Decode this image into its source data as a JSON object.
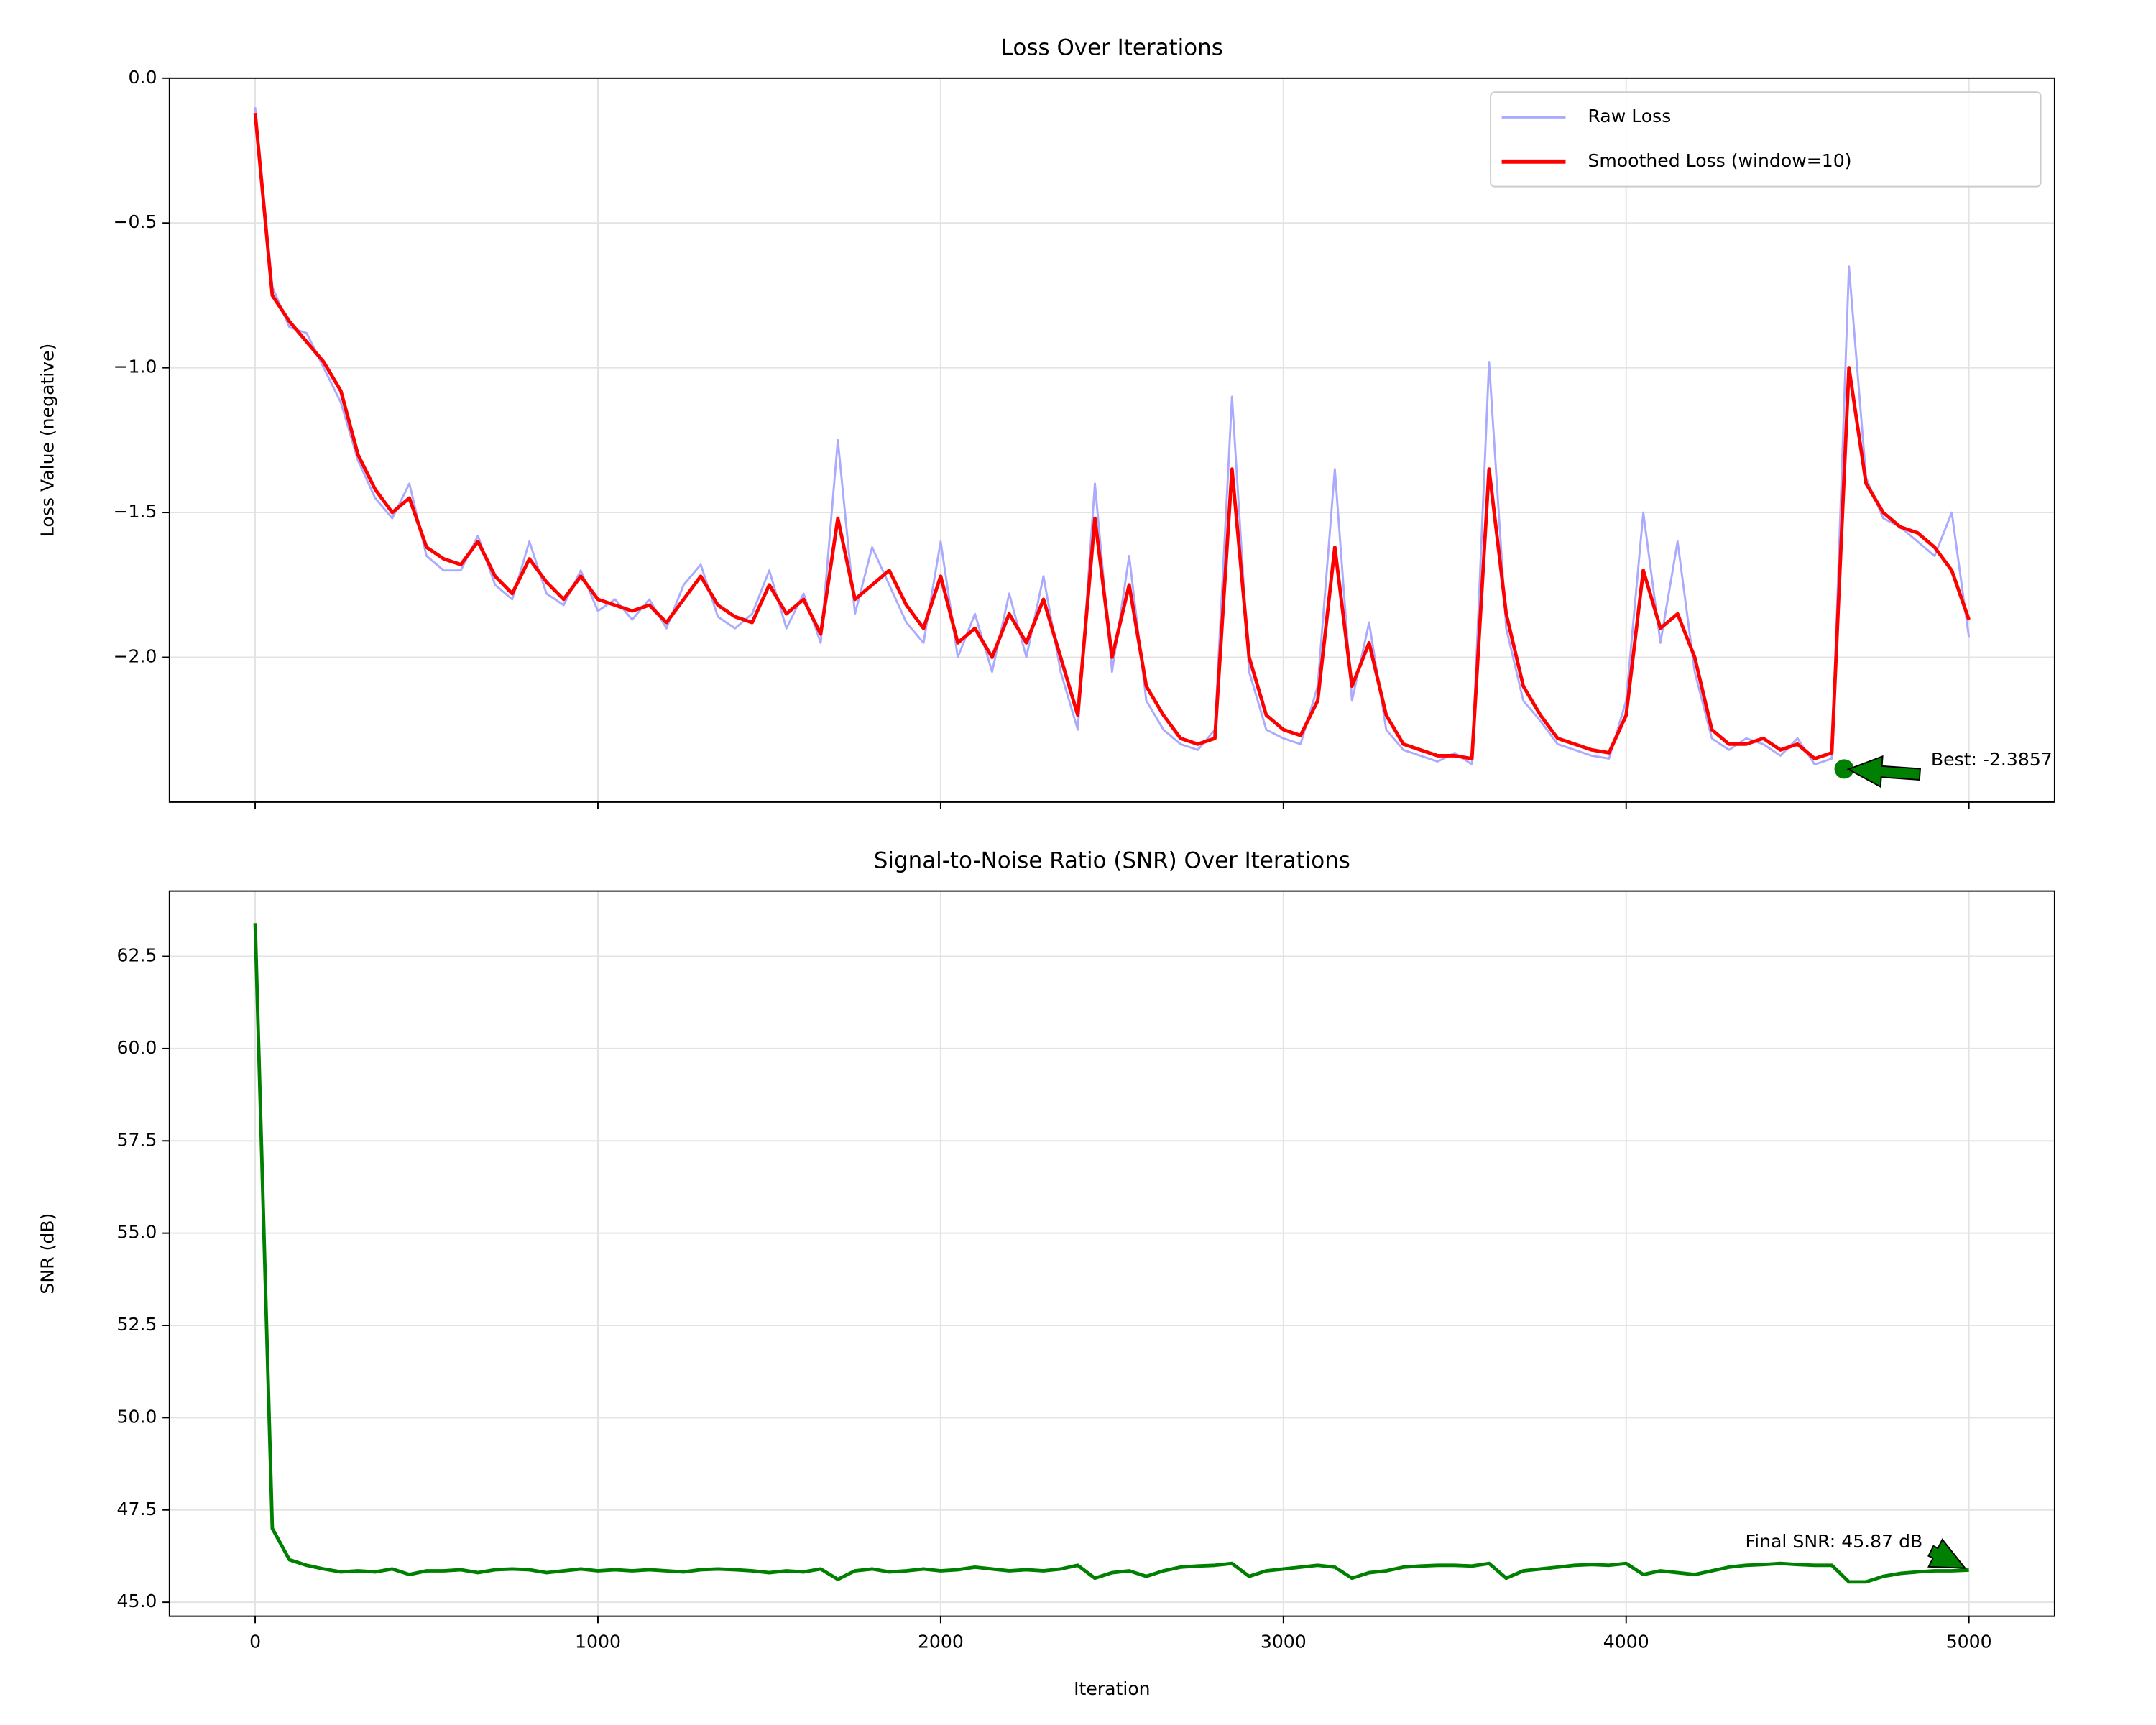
{
  "chart_data": [
    {
      "type": "line",
      "title": "Loss Over Iterations",
      "ylabel": "Loss Value (negative)",
      "x": [
        0,
        50,
        100,
        150,
        200,
        250,
        300,
        350,
        400,
        450,
        500,
        550,
        600,
        650,
        700,
        750,
        800,
        850,
        900,
        950,
        1000,
        1050,
        1100,
        1150,
        1200,
        1250,
        1300,
        1350,
        1400,
        1450,
        1500,
        1550,
        1600,
        1650,
        1700,
        1750,
        1800,
        1850,
        1900,
        1950,
        2000,
        2050,
        2100,
        2150,
        2200,
        2250,
        2300,
        2350,
        2400,
        2450,
        2500,
        2550,
        2600,
        2650,
        2700,
        2750,
        2800,
        2850,
        2900,
        2950,
        3000,
        3050,
        3100,
        3150,
        3200,
        3250,
        3300,
        3350,
        3400,
        3450,
        3500,
        3550,
        3600,
        3650,
        3700,
        3750,
        3800,
        3850,
        3900,
        3950,
        4000,
        4050,
        4100,
        4150,
        4200,
        4250,
        4300,
        4350,
        4400,
        4450,
        4500,
        4550,
        4600,
        4650,
        4700,
        4750,
        4800,
        4850,
        4900,
        4950,
        5000
      ],
      "series": [
        {
          "name": "Raw Loss",
          "color": "#aaaaff",
          "values": [
            -0.1,
            -0.72,
            -0.86,
            -0.88,
            -1.0,
            -1.12,
            -1.32,
            -1.45,
            -1.52,
            -1.4,
            -1.65,
            -1.7,
            -1.7,
            -1.58,
            -1.75,
            -1.8,
            -1.6,
            -1.78,
            -1.82,
            -1.7,
            -1.84,
            -1.8,
            -1.87,
            -1.8,
            -1.9,
            -1.75,
            -1.68,
            -1.86,
            -1.9,
            -1.85,
            -1.7,
            -1.9,
            -1.78,
            -1.95,
            -1.25,
            -1.85,
            -1.62,
            -1.75,
            -1.88,
            -1.95,
            -1.6,
            -2.0,
            -1.85,
            -2.05,
            -1.78,
            -2.0,
            -1.72,
            -2.05,
            -2.25,
            -1.4,
            -2.05,
            -1.65,
            -2.15,
            -2.25,
            -2.3,
            -2.32,
            -2.25,
            -1.1,
            -2.05,
            -2.25,
            -2.28,
            -2.3,
            -2.1,
            -1.35,
            -2.15,
            -1.88,
            -2.25,
            -2.32,
            -2.34,
            -2.36,
            -2.33,
            -2.37,
            -0.98,
            -1.9,
            -2.15,
            -2.22,
            -2.3,
            -2.32,
            -2.34,
            -2.35,
            -2.15,
            -1.5,
            -1.95,
            -1.6,
            -2.05,
            -2.28,
            -2.32,
            -2.28,
            -2.3,
            -2.34,
            -2.28,
            -2.37,
            -2.35,
            -0.65,
            -1.38,
            -1.52,
            -1.55,
            -1.6,
            -1.65,
            -1.5,
            -1.93
          ]
        },
        {
          "name": "Smoothed Loss (window=10)",
          "color": "#ff0000",
          "values": [
            -0.12,
            -0.75,
            -0.84,
            -0.91,
            -0.98,
            -1.08,
            -1.3,
            -1.42,
            -1.5,
            -1.45,
            -1.62,
            -1.66,
            -1.68,
            -1.6,
            -1.72,
            -1.78,
            -1.66,
            -1.74,
            -1.8,
            -1.72,
            -1.8,
            -1.82,
            -1.84,
            -1.82,
            -1.88,
            -1.8,
            -1.72,
            -1.82,
            -1.86,
            -1.88,
            -1.75,
            -1.85,
            -1.8,
            -1.92,
            -1.52,
            -1.8,
            -1.75,
            -1.7,
            -1.82,
            -1.9,
            -1.72,
            -1.95,
            -1.9,
            -2.0,
            -1.85,
            -1.95,
            -1.8,
            -2.0,
            -2.2,
            -1.52,
            -2.0,
            -1.75,
            -2.1,
            -2.2,
            -2.28,
            -2.3,
            -2.28,
            -1.35,
            -2.0,
            -2.2,
            -2.25,
            -2.27,
            -2.15,
            -1.62,
            -2.1,
            -1.95,
            -2.2,
            -2.3,
            -2.32,
            -2.34,
            -2.34,
            -2.35,
            -1.35,
            -1.85,
            -2.1,
            -2.2,
            -2.28,
            -2.3,
            -2.32,
            -2.33,
            -2.2,
            -1.7,
            -1.9,
            -1.85,
            -2.0,
            -2.25,
            -2.3,
            -2.3,
            -2.28,
            -2.32,
            -2.3,
            -2.35,
            -2.33,
            -1.0,
            -1.4,
            -1.5,
            -1.55,
            -1.57,
            -1.62,
            -1.7,
            -1.87
          ]
        }
      ],
      "xlim": [
        -250,
        5250
      ],
      "xticks": [
        0,
        1000,
        2000,
        3000,
        4000,
        5000
      ],
      "ylim": [
        -2.5,
        0
      ],
      "yticks": [
        {
          "value": 0,
          "label": "0.0"
        },
        {
          "value": -0.5,
          "label": "−0.5"
        },
        {
          "value": -1,
          "label": "−1.0"
        },
        {
          "value": -1.5,
          "label": "−1.5"
        },
        {
          "value": -2,
          "label": "−2.0"
        }
      ],
      "grid": true,
      "legend": "upper right",
      "annotations": [
        {
          "text": "Best: -2.3857",
          "x": 4636,
          "y": -2.3857,
          "color": "#008000"
        }
      ]
    },
    {
      "type": "line",
      "title": "Signal-to-Noise Ratio (SNR) Over Iterations",
      "ylabel": "SNR (dB)",
      "xlabel": "Iteration",
      "x": [
        0,
        50,
        100,
        150,
        200,
        250,
        300,
        350,
        400,
        450,
        500,
        550,
        600,
        650,
        700,
        750,
        800,
        850,
        900,
        950,
        1000,
        1050,
        1100,
        1150,
        1200,
        1250,
        1300,
        1350,
        1400,
        1450,
        1500,
        1550,
        1600,
        1650,
        1700,
        1750,
        1800,
        1850,
        1900,
        1950,
        2000,
        2050,
        2100,
        2150,
        2200,
        2250,
        2300,
        2350,
        2400,
        2450,
        2500,
        2550,
        2600,
        2650,
        2700,
        2750,
        2800,
        2850,
        2900,
        2950,
        3000,
        3050,
        3100,
        3150,
        3200,
        3250,
        3300,
        3350,
        3400,
        3450,
        3500,
        3550,
        3600,
        3650,
        3700,
        3750,
        3800,
        3850,
        3900,
        3950,
        4000,
        4050,
        4100,
        4150,
        4200,
        4250,
        4300,
        4350,
        4400,
        4450,
        4500,
        4550,
        4600,
        4650,
        4700,
        4750,
        4800,
        4850,
        4900,
        4950,
        5000
      ],
      "series": [
        {
          "name": "SNR",
          "color": "#008000",
          "values": [
            63.4,
            47.0,
            46.15,
            46.0,
            45.9,
            45.82,
            45.85,
            45.82,
            45.9,
            45.75,
            45.85,
            45.85,
            45.88,
            45.8,
            45.88,
            45.9,
            45.88,
            45.8,
            45.85,
            45.9,
            45.85,
            45.88,
            45.85,
            45.88,
            45.85,
            45.82,
            45.88,
            45.9,
            45.88,
            45.85,
            45.8,
            45.85,
            45.82,
            45.9,
            45.62,
            45.85,
            45.9,
            45.82,
            45.85,
            45.9,
            45.85,
            45.88,
            45.95,
            45.9,
            45.85,
            45.88,
            45.85,
            45.9,
            46.0,
            45.65,
            45.8,
            45.85,
            45.7,
            45.85,
            45.95,
            45.98,
            46.0,
            46.05,
            45.7,
            45.85,
            45.9,
            45.95,
            46.0,
            45.95,
            45.65,
            45.8,
            45.85,
            45.95,
            45.98,
            46.0,
            46.0,
            45.98,
            46.05,
            45.65,
            45.85,
            45.9,
            45.95,
            46.0,
            46.02,
            46.0,
            46.05,
            45.75,
            45.85,
            45.8,
            45.75,
            45.85,
            45.95,
            46.0,
            46.02,
            46.05,
            46.02,
            46.0,
            46.0,
            45.55,
            45.55,
            45.7,
            45.78,
            45.82,
            45.85,
            45.85,
            45.87
          ]
        }
      ],
      "xlim": [
        -250,
        5250
      ],
      "xticks": [
        0,
        1000,
        2000,
        3000,
        4000,
        5000
      ],
      "ylim": [
        44.62,
        64.27
      ],
      "yticks": [
        {
          "value": 45,
          "label": "45.0"
        },
        {
          "value": 47.5,
          "label": "47.5"
        },
        {
          "value": 50,
          "label": "50.0"
        },
        {
          "value": 52.5,
          "label": "52.5"
        },
        {
          "value": 55,
          "label": "55.0"
        },
        {
          "value": 57.5,
          "label": "57.5"
        },
        {
          "value": 60,
          "label": "60.0"
        },
        {
          "value": 62.5,
          "label": "62.5"
        }
      ],
      "grid": true,
      "annotations": [
        {
          "text": "Final SNR: 45.87 dB",
          "x": 5000,
          "y": 45.87,
          "color": "#008000"
        }
      ]
    }
  ]
}
